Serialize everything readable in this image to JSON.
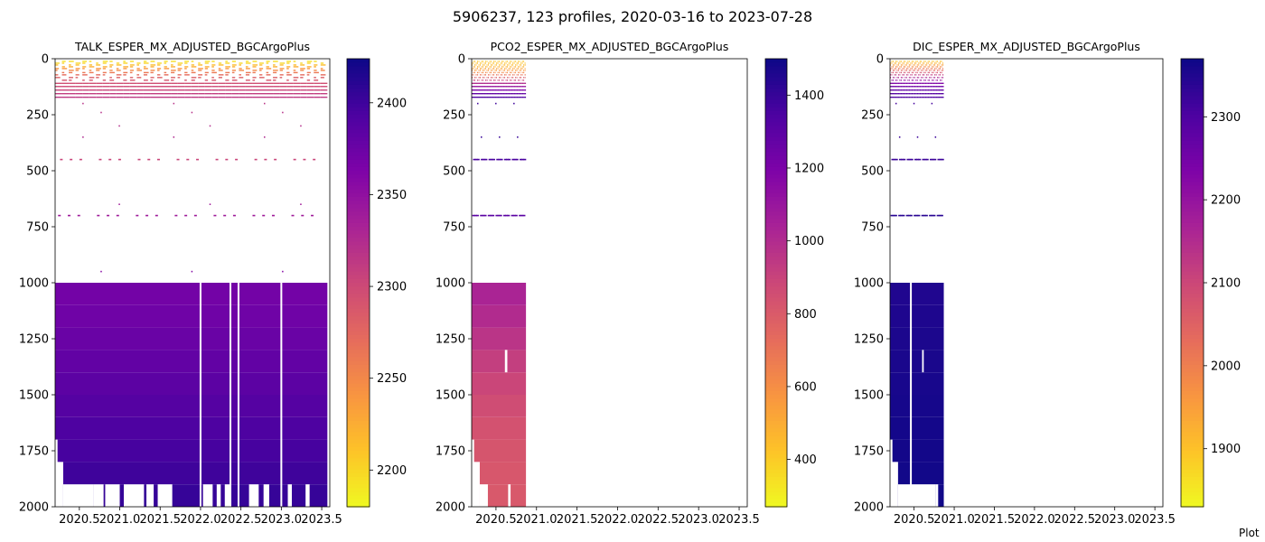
{
  "figure": {
    "title": "5906237, 123 profiles, 2020-03-16 to 2023-07-28",
    "footer_text": "Plot"
  },
  "colormap": [
    "#f0f921",
    "#fdc328",
    "#f89441",
    "#e56b5d",
    "#cb4778",
    "#a82296",
    "#7e03a8",
    "#4c02a1",
    "#0d0887"
  ],
  "chart_data": [
    {
      "type": "heatmap",
      "title": "TALK_ESPER_MX_ADJUSTED_BGCArgoPlus",
      "xlabel": "",
      "ylabel": "",
      "x_range": [
        2020.2,
        2023.6
      ],
      "y_range": [
        0,
        2000
      ],
      "y_inverted": true,
      "x_ticks": [
        "2020.5",
        "2021.0",
        "2021.5",
        "2022.0",
        "2022.5",
        "2023.0",
        "2023.5"
      ],
      "y_ticks": [
        "0",
        "250",
        "500",
        "750",
        "1000",
        "1250",
        "1500",
        "1750",
        "2000"
      ],
      "colorbar": {
        "range": [
          2180,
          2424
        ],
        "ticks": [
          "2200",
          "2250",
          "2300",
          "2350",
          "2400"
        ]
      },
      "data_x_end": 2023.57,
      "upper_layer_depths": [
        12,
        20,
        28,
        36,
        44,
        52,
        62,
        72,
        84,
        96,
        110,
        124,
        140,
        156,
        172
      ],
      "upper_layer_values": [
        2195,
        2200,
        2215,
        2225,
        2240,
        2250,
        2262,
        2272,
        2282,
        2290,
        2296,
        2300,
        2305,
        2310,
        2314
      ],
      "sparse_depths": [
        200,
        240,
        300,
        350,
        450,
        650,
        700,
        950
      ],
      "sparse_values": [
        2318,
        2320,
        2322,
        2326,
        2304,
        2338,
        2340,
        2358
      ],
      "deep_bands": [
        {
          "top": 1000,
          "bottom": 1100,
          "value": 2370
        },
        {
          "top": 1100,
          "bottom": 1200,
          "value": 2372
        },
        {
          "top": 1200,
          "bottom": 1300,
          "value": 2376
        },
        {
          "top": 1300,
          "bottom": 1400,
          "value": 2380
        },
        {
          "top": 1400,
          "bottom": 1500,
          "value": 2384
        },
        {
          "top": 1500,
          "bottom": 1600,
          "value": 2388
        },
        {
          "top": 1600,
          "bottom": 1700,
          "value": 2392
        },
        {
          "top": 1700,
          "bottom": 1800,
          "value": 2396
        },
        {
          "top": 1800,
          "bottom": 1900,
          "value": 2400
        },
        {
          "top": 1900,
          "bottom": 2000,
          "value": 2404
        }
      ],
      "deep_gaps": [
        2022.0,
        2022.37,
        2022.47,
        2023.0
      ],
      "bottom_gaps": [
        [
          2020.2,
          2020.23,
          1700
        ],
        [
          2020.2,
          2020.3,
          1800
        ],
        [
          2020.3,
          2020.68,
          1900
        ],
        [
          2020.68,
          2020.8,
          1900
        ],
        [
          2020.82,
          2021.0,
          1900
        ],
        [
          2021.05,
          2021.3,
          1900
        ],
        [
          2021.33,
          2021.42,
          1900
        ],
        [
          2021.47,
          2021.65,
          1900
        ],
        [
          2022.03,
          2022.15,
          1900
        ],
        [
          2022.2,
          2022.25,
          1900
        ],
        [
          2022.3,
          2022.37,
          1900
        ],
        [
          2022.6,
          2022.72,
          1900
        ],
        [
          2022.78,
          2022.85,
          1900
        ],
        [
          2023.08,
          2023.13,
          1900
        ],
        [
          2023.3,
          2023.35,
          1900
        ]
      ]
    },
    {
      "type": "heatmap",
      "title": "PCO2_ESPER_MX_ADJUSTED_BGCArgoPlus",
      "xlabel": "",
      "ylabel": "",
      "x_range": [
        2020.2,
        2023.6
      ],
      "y_range": [
        0,
        2000
      ],
      "y_inverted": true,
      "x_ticks": [
        "2020.5",
        "2021.0",
        "2021.5",
        "2022.0",
        "2022.5",
        "2023.0",
        "2023.5"
      ],
      "y_ticks": [
        "0",
        "250",
        "500",
        "750",
        "1000",
        "1250",
        "1500",
        "1750",
        "2000"
      ],
      "colorbar": {
        "range": [
          270,
          1500
        ],
        "ticks": [
          "400",
          "600",
          "800",
          "1000",
          "1200",
          "1400"
        ]
      },
      "data_x_end": 2020.87,
      "upper_layer_depths": [
        12,
        20,
        28,
        36,
        44,
        52,
        62,
        72,
        84,
        96,
        110,
        124,
        140,
        156,
        172
      ],
      "upper_layer_values": [
        420,
        430,
        450,
        480,
        520,
        560,
        620,
        700,
        800,
        900,
        1000,
        1100,
        1200,
        1280,
        1340
      ],
      "sparse_depths": [
        200,
        350,
        450,
        700
      ],
      "sparse_values": [
        1380,
        1400,
        1350,
        1300
      ],
      "deep_bands": [
        {
          "top": 1000,
          "bottom": 1100,
          "value": 1030
        },
        {
          "top": 1100,
          "bottom": 1200,
          "value": 1000
        },
        {
          "top": 1200,
          "bottom": 1300,
          "value": 960
        },
        {
          "top": 1300,
          "bottom": 1400,
          "value": 920
        },
        {
          "top": 1400,
          "bottom": 1500,
          "value": 890
        },
        {
          "top": 1500,
          "bottom": 1600,
          "value": 860
        },
        {
          "top": 1600,
          "bottom": 1700,
          "value": 840
        },
        {
          "top": 1700,
          "bottom": 1800,
          "value": 825
        },
        {
          "top": 1800,
          "bottom": 1900,
          "value": 815
        },
        {
          "top": 1900,
          "bottom": 2000,
          "value": 810
        }
      ],
      "deep_gaps": [],
      "bottom_gaps": [
        [
          2020.2,
          2020.23,
          1700
        ],
        [
          2020.2,
          2020.3,
          1800
        ],
        [
          2020.3,
          2020.4,
          1900
        ]
      ],
      "missing_patches": [
        [
          2020.61,
          2020.64,
          1300,
          1400
        ],
        [
          2020.65,
          2020.68,
          1900,
          2000
        ]
      ]
    },
    {
      "type": "heatmap",
      "title": "DIC_ESPER_MX_ADJUSTED_BGCArgoPlus",
      "xlabel": "",
      "ylabel": "",
      "x_range": [
        2020.2,
        2023.6
      ],
      "y_range": [
        0,
        2000
      ],
      "y_inverted": true,
      "x_ticks": [
        "2020.5",
        "2021.0",
        "2021.5",
        "2022.0",
        "2022.5",
        "2023.0",
        "2023.5"
      ],
      "y_ticks": [
        "0",
        "250",
        "500",
        "750",
        "1000",
        "1250",
        "1500",
        "1750",
        "2000"
      ],
      "colorbar": {
        "range": [
          1830,
          2370
        ],
        "ticks": [
          "1900",
          "2000",
          "2100",
          "2200",
          "2300"
        ]
      },
      "data_x_end": 2020.87,
      "upper_layer_depths": [
        12,
        20,
        28,
        36,
        44,
        52,
        62,
        72,
        84,
        96,
        110,
        124,
        140,
        156,
        172
      ],
      "upper_layer_values": [
        1900,
        1920,
        1950,
        1980,
        2010,
        2040,
        2080,
        2120,
        2160,
        2200,
        2230,
        2255,
        2275,
        2290,
        2300
      ],
      "sparse_depths": [
        200,
        350,
        450,
        700
      ],
      "sparse_values": [
        2310,
        2320,
        2320,
        2340
      ],
      "deep_bands": [
        {
          "top": 1000,
          "bottom": 1100,
          "value": 2350
        },
        {
          "top": 1100,
          "bottom": 1200,
          "value": 2352
        },
        {
          "top": 1200,
          "bottom": 1300,
          "value": 2354
        },
        {
          "top": 1300,
          "bottom": 1400,
          "value": 2356
        },
        {
          "top": 1400,
          "bottom": 1500,
          "value": 2358
        },
        {
          "top": 1500,
          "bottom": 1600,
          "value": 2360
        },
        {
          "top": 1600,
          "bottom": 1700,
          "value": 2362
        },
        {
          "top": 1700,
          "bottom": 1800,
          "value": 2364
        },
        {
          "top": 1800,
          "bottom": 1900,
          "value": 2365
        },
        {
          "top": 1900,
          "bottom": 2000,
          "value": 2366
        }
      ],
      "deep_gaps": [
        2020.46
      ],
      "bottom_gaps": [
        [
          2020.2,
          2020.23,
          1700
        ],
        [
          2020.2,
          2020.3,
          1800
        ],
        [
          2020.3,
          2020.77,
          1900
        ]
      ],
      "missing_patches": [
        [
          2020.6,
          2020.62,
          1300,
          1400
        ],
        [
          2020.77,
          2020.8,
          1900,
          2000
        ]
      ]
    }
  ]
}
